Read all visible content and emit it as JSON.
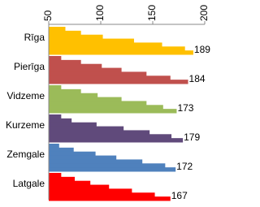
{
  "chart_data": {
    "type": "staircase",
    "categories": [
      "Rīga",
      "Pierīga",
      "Vidzeme",
      "Kurzeme",
      "Zemgale",
      "Latgale"
    ],
    "values": [
      [
        66,
        81,
        102,
        132,
        159,
        181,
        189
      ],
      [
        62,
        81,
        101,
        120,
        144,
        167,
        184
      ],
      [
        62,
        81,
        97,
        120,
        144,
        160,
        173
      ],
      [
        62,
        72,
        96,
        122,
        147,
        168,
        179
      ],
      [
        60,
        74,
        95,
        115,
        140,
        162,
        172
      ],
      [
        62,
        75,
        90,
        108,
        130,
        152,
        167
      ]
    ],
    "colors": [
      "#ffc000",
      "#c0504d",
      "#9bbb59",
      "#604a7b",
      "#4f81bd",
      "#ff0000"
    ],
    "xlim": [
      50,
      200
    ],
    "xticks": [
      50,
      100,
      150,
      200
    ]
  }
}
